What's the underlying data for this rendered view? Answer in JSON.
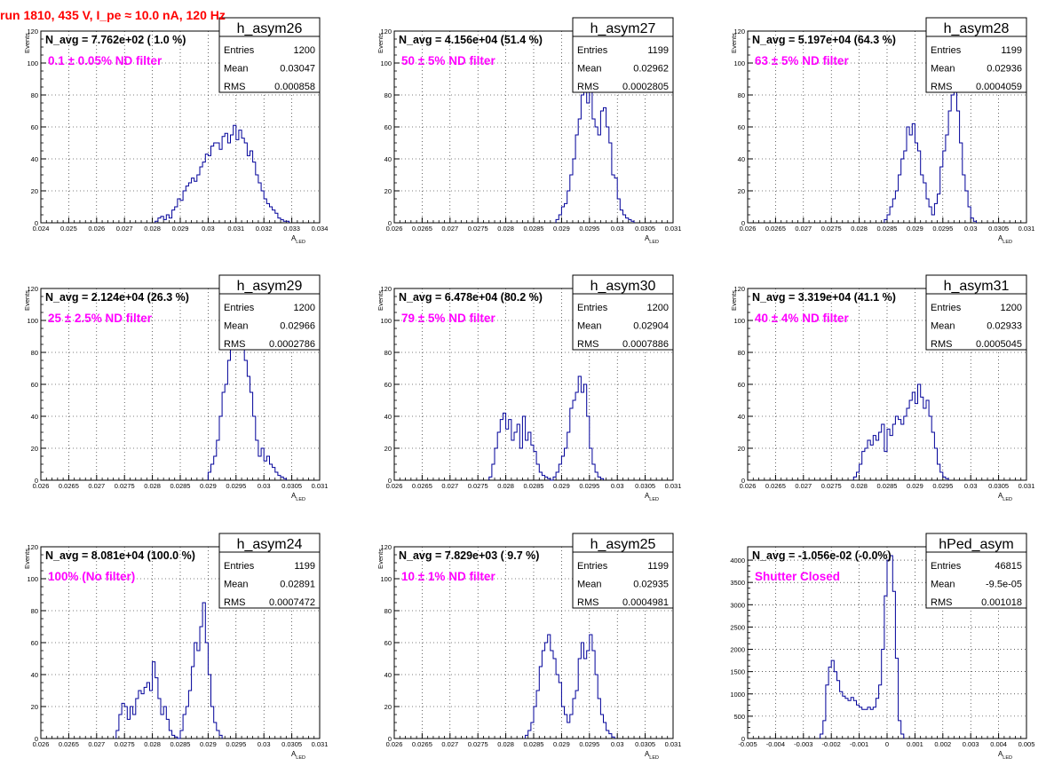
{
  "page": {
    "title": "run 1810,   435 V, I_pe ≈ 10.0 nA, 120 Hz"
  },
  "chart_data": [
    {
      "type": "histogram",
      "name": "h_asym26",
      "stats": {
        "Entries": "1200",
        "Mean": "0.03047",
        "RMS": "0.000858"
      },
      "navg": "N_avg = 7.762e+02 ( 1.0 %)",
      "filter": "0.1 ± 0.05% ND filter",
      "xlabel": "A_LED",
      "ylabel": "Events",
      "xlim": [
        0.024,
        0.034
      ],
      "ylim": [
        0,
        120
      ],
      "xticks": [
        "0.024",
        "0.025",
        "0.026",
        "0.027",
        "0.028",
        "0.029",
        "0.03",
        "0.031",
        "0.032",
        "0.033",
        "0.034"
      ],
      "yticks": [
        "0",
        "20",
        "40",
        "60",
        "80",
        "100",
        "120"
      ],
      "bins_start": 0.0281,
      "bin_width": 0.0001,
      "values": [
        1,
        3,
        4,
        2,
        5,
        3,
        8,
        10,
        15,
        14,
        20,
        23,
        25,
        28,
        26,
        30,
        35,
        38,
        43,
        42,
        48,
        50,
        50,
        46,
        54,
        56,
        50,
        55,
        61,
        52,
        58,
        53,
        50,
        42,
        45,
        38,
        30,
        25,
        20,
        15,
        12,
        10,
        8,
        6,
        3,
        2,
        1,
        1
      ]
    },
    {
      "type": "histogram",
      "name": "h_asym27",
      "stats": {
        "Entries": "1199",
        "Mean": "0.02962",
        "RMS": "0.0002805"
      },
      "navg": "N_avg = 4.156e+04 (51.4 %)",
      "filter": "50 ± 5% ND filter",
      "xlabel": "A_LED",
      "ylabel": "Events",
      "xlim": [
        0.026,
        0.031
      ],
      "ylim": [
        0,
        120
      ],
      "xticks": [
        "0.026",
        "0.0265",
        "0.027",
        "0.0275",
        "0.028",
        "0.0285",
        "0.029",
        "0.0295",
        "0.03",
        "0.0305",
        "0.031"
      ],
      "yticks": [
        "0",
        "20",
        "40",
        "60",
        "80",
        "100",
        "120"
      ],
      "bins_start": 0.0289,
      "bin_width": 5e-05,
      "values": [
        2,
        5,
        10,
        12,
        20,
        30,
        40,
        55,
        65,
        80,
        86,
        75,
        85,
        65,
        60,
        55,
        70,
        72,
        60,
        50,
        30,
        28,
        15,
        8,
        5,
        3,
        2,
        1
      ]
    },
    {
      "type": "histogram",
      "name": "h_asym28",
      "stats": {
        "Entries": "1199",
        "Mean": "0.02936",
        "RMS": "0.0004059"
      },
      "navg": "N_avg = 5.197e+04 (64.3 %)",
      "filter": "63 ± 5% ND filter",
      "xlabel": "A_LED",
      "ylabel": "Events",
      "xlim": [
        0.026,
        0.031
      ],
      "ylim": [
        0,
        120
      ],
      "xticks": [
        "0.026",
        "0.0265",
        "0.027",
        "0.0275",
        "0.028",
        "0.0285",
        "0.029",
        "0.0295",
        "0.03",
        "0.0305",
        "0.031"
      ],
      "yticks": [
        "0",
        "20",
        "40",
        "60",
        "80",
        "100",
        "120"
      ],
      "bins_start": 0.02845,
      "bin_width": 5e-05,
      "values": [
        2,
        5,
        10,
        15,
        20,
        30,
        40,
        45,
        60,
        55,
        62,
        50,
        45,
        30,
        25,
        15,
        10,
        5,
        12,
        18,
        35,
        45,
        55,
        70,
        80,
        95,
        70,
        50,
        30,
        20,
        10,
        3,
        1
      ]
    },
    {
      "type": "histogram",
      "name": "h_asym29",
      "stats": {
        "Entries": "1200",
        "Mean": "0.02966",
        "RMS": "0.0002786"
      },
      "navg": "N_avg = 2.124e+04 (26.3 %)",
      "filter": "25 ± 2.5% ND filter",
      "xlabel": "A_LED",
      "ylabel": "Events",
      "xlim": [
        0.026,
        0.031
      ],
      "ylim": [
        0,
        120
      ],
      "xticks": [
        "0.026",
        "0.0265",
        "0.027",
        "0.0275",
        "0.028",
        "0.0285",
        "0.029",
        "0.0295",
        "0.03",
        "0.0305",
        "0.031"
      ],
      "yticks": [
        "0",
        "20",
        "40",
        "60",
        "80",
        "100",
        "120"
      ],
      "bins_start": 0.029,
      "bin_width": 5e-05,
      "values": [
        5,
        10,
        15,
        25,
        40,
        55,
        60,
        75,
        90,
        105,
        110,
        95,
        85,
        75,
        65,
        55,
        40,
        25,
        15,
        20,
        12,
        15,
        10,
        8,
        5,
        3,
        2,
        1
      ]
    },
    {
      "type": "histogram",
      "name": "h_asym30",
      "stats": {
        "Entries": "1200",
        "Mean": "0.02904",
        "RMS": "0.0007886"
      },
      "navg": "N_avg = 6.478e+04 (80.2 %)",
      "filter": "79 ± 5% ND filter",
      "xlabel": "A_LED",
      "ylabel": "Events",
      "xlim": [
        0.026,
        0.031
      ],
      "ylim": [
        0,
        120
      ],
      "xticks": [
        "0.026",
        "0.0265",
        "0.027",
        "0.0275",
        "0.028",
        "0.0285",
        "0.029",
        "0.0295",
        "0.03",
        "0.0305",
        "0.031"
      ],
      "yticks": [
        "0",
        "20",
        "40",
        "60",
        "80",
        "100",
        "120"
      ],
      "bins_start": 0.0277,
      "bin_width": 5e-05,
      "values": [
        2,
        10,
        20,
        30,
        38,
        42,
        32,
        38,
        25,
        30,
        35,
        20,
        40,
        25,
        30,
        22,
        18,
        10,
        5,
        3,
        2,
        1,
        0,
        2,
        5,
        10,
        15,
        20,
        30,
        45,
        50,
        55,
        65,
        55,
        60,
        40,
        20,
        10,
        5,
        2,
        1
      ]
    },
    {
      "type": "histogram",
      "name": "h_asym31",
      "stats": {
        "Entries": "1200",
        "Mean": "0.02933",
        "RMS": "0.0005045"
      },
      "navg": "N_avg = 3.319e+04 (41.1 %)",
      "filter": "40 ± 4% ND filter",
      "xlabel": "A_LED",
      "ylabel": "Events",
      "xlim": [
        0.026,
        0.031
      ],
      "ylim": [
        0,
        120
      ],
      "xticks": [
        "0.026",
        "0.0265",
        "0.027",
        "0.0275",
        "0.028",
        "0.0285",
        "0.029",
        "0.0295",
        "0.03",
        "0.0305",
        "0.031"
      ],
      "yticks": [
        "0",
        "20",
        "40",
        "60",
        "80",
        "100",
        "120"
      ],
      "bins_start": 0.0279,
      "bin_width": 5e-05,
      "values": [
        2,
        5,
        10,
        18,
        20,
        25,
        22,
        28,
        25,
        30,
        35,
        18,
        32,
        28,
        35,
        40,
        38,
        35,
        40,
        45,
        50,
        55,
        48,
        60,
        52,
        45,
        50,
        40,
        30,
        20,
        10,
        5,
        2,
        1
      ]
    },
    {
      "type": "histogram",
      "name": "h_asym24",
      "stats": {
        "Entries": "1199",
        "Mean": "0.02891",
        "RMS": "0.0007472"
      },
      "navg": "N_avg = 8.081e+04 (100.0 %)",
      "filter": "100% (No filter)",
      "xlabel": "A_LED",
      "ylabel": "Events",
      "xlim": [
        0.026,
        0.031
      ],
      "ylim": [
        0,
        120
      ],
      "xticks": [
        "0.026",
        "0.0265",
        "0.027",
        "0.0275",
        "0.028",
        "0.0285",
        "0.029",
        "0.0295",
        "0.03",
        "0.0305",
        "0.031"
      ],
      "yticks": [
        "0",
        "20",
        "40",
        "60",
        "80",
        "100",
        "120"
      ],
      "bins_start": 0.02735,
      "bin_width": 5e-05,
      "values": [
        5,
        15,
        22,
        20,
        12,
        20,
        15,
        25,
        30,
        28,
        32,
        35,
        30,
        48,
        38,
        25,
        15,
        20,
        12,
        5,
        2,
        1,
        0,
        5,
        15,
        20,
        30,
        45,
        60,
        55,
        70,
        85,
        60,
        40,
        20,
        10,
        5,
        2
      ]
    },
    {
      "type": "histogram",
      "name": "h_asym25",
      "stats": {
        "Entries": "1199",
        "Mean": "0.02935",
        "RMS": "0.0004981"
      },
      "navg": "N_avg = 7.829e+03 ( 9.7 %)",
      "filter": "10 ± 1% ND filter",
      "xlabel": "A_LED",
      "ylabel": "Events",
      "xlim": [
        0.026,
        0.031
      ],
      "ylim": [
        0,
        120
      ],
      "xticks": [
        "0.026",
        "0.0265",
        "0.027",
        "0.0275",
        "0.028",
        "0.0285",
        "0.029",
        "0.0295",
        "0.03",
        "0.0305",
        "0.031"
      ],
      "yticks": [
        "0",
        "20",
        "40",
        "60",
        "80",
        "100",
        "120"
      ],
      "bins_start": 0.02835,
      "bin_width": 5e-05,
      "values": [
        2,
        5,
        10,
        20,
        30,
        45,
        55,
        60,
        65,
        55,
        50,
        40,
        35,
        20,
        15,
        10,
        15,
        25,
        30,
        50,
        60,
        50,
        55,
        65,
        55,
        40,
        25,
        15,
        10,
        5,
        3,
        1
      ]
    },
    {
      "type": "histogram",
      "name": "hPed_asym",
      "stats": {
        "Entries": "46815",
        "Mean": "-9.5e-05",
        "RMS": "0.001018"
      },
      "navg": "N_avg = -1.056e-02 (-0.0%)",
      "filter": "Shutter Closed",
      "xlabel": "A_LED",
      "ylabel": "",
      "xlim": [
        -0.005,
        0.005
      ],
      "ylim": [
        0,
        4300
      ],
      "xticks": [
        "-0.005",
        "-0.004",
        "-0.003",
        "-0.002",
        "-0.001",
        "0",
        "0.001",
        "0.002",
        "0.003",
        "0.004",
        "0.005"
      ],
      "yticks": [
        "0",
        "500",
        "1000",
        "1500",
        "2000",
        "2500",
        "3000",
        "3500",
        "4000"
      ],
      "bins_start": -0.0024,
      "bin_width": 0.0001,
      "values": [
        100,
        400,
        1200,
        1600,
        1750,
        1500,
        1300,
        1050,
        950,
        900,
        850,
        920,
        850,
        750,
        700,
        650,
        650,
        700,
        650,
        700,
        900,
        1200,
        2000,
        3200,
        4000,
        4100,
        3300,
        1800,
        400,
        100
      ]
    }
  ]
}
